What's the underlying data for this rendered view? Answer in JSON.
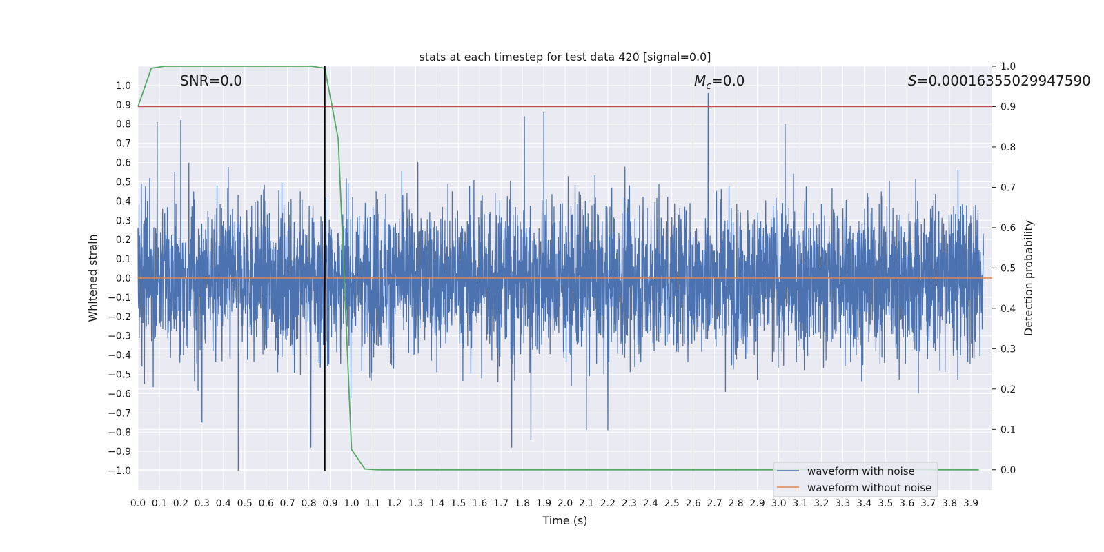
{
  "chart_data": {
    "type": "line",
    "title": "stats at each timestep for test data 420 [signal=0.0]",
    "xlabel": "Time (s)",
    "ylabel": "Whitened strain",
    "y2label": "Detection probability",
    "xlim": [
      0.0,
      4.0
    ],
    "ylim": [
      -1.1,
      1.1
    ],
    "y2lim": [
      -0.05,
      1.0
    ],
    "grid": true,
    "xticks": [
      "0.0",
      "0.1",
      "0.2",
      "0.3",
      "0.4",
      "0.5",
      "0.6",
      "0.7",
      "0.8",
      "0.9",
      "1.0",
      "1.1",
      "1.2",
      "1.3",
      "1.4",
      "1.5",
      "1.6",
      "1.7",
      "1.8",
      "1.9",
      "2.0",
      "2.1",
      "2.2",
      "2.3",
      "2.4",
      "2.5",
      "2.6",
      "2.7",
      "2.8",
      "2.9",
      "3.0",
      "3.1",
      "3.2",
      "3.3",
      "3.4",
      "3.5",
      "3.6",
      "3.7",
      "3.8",
      "3.9"
    ],
    "yticks": [
      "1.0",
      "0.9",
      "0.8",
      "0.7",
      "0.6",
      "0.5",
      "0.4",
      "0.3",
      "0.2",
      "0.1",
      "0.0",
      "-0.1",
      "-0.2",
      "-0.3",
      "-0.4",
      "-0.5",
      "-0.6",
      "-0.7",
      "-0.8",
      "-0.9",
      "-1.0"
    ],
    "y2ticks": [
      "1.0",
      "0.9",
      "0.8",
      "0.7",
      "0.6",
      "0.5",
      "0.4",
      "0.3",
      "0.2",
      "0.1",
      "0.0"
    ],
    "annotations": {
      "snr": "SNR=0.0",
      "mc_symbol": "M",
      "mc_sub": "c",
      "mc_value": "=0.0",
      "s_symbol": "S",
      "s_value": "=0.00016355029947590"
    },
    "threshold": {
      "y2": 0.9,
      "color": "#c44e52"
    },
    "vline": {
      "x": 0.875,
      "color": "#000000"
    },
    "legend": {
      "placement": "lower-right",
      "entries": [
        {
          "label": "waveform with noise",
          "color": "#4c72b0"
        },
        {
          "label": "waveform without noise",
          "color": "#dd8452"
        }
      ]
    },
    "series": [
      {
        "name": "waveform with noise",
        "axis": "left",
        "color": "#4c72b0",
        "sample_rate_hz": 1024,
        "noise_model": "gaussian",
        "amplitude_sigma": 0.2,
        "peaks": [
          {
            "x": 0.09,
            "y": 0.81
          },
          {
            "x": 0.2,
            "y": 0.82
          },
          {
            "x": 0.47,
            "y": -1.0
          },
          {
            "x": 0.81,
            "y": -0.88
          },
          {
            "x": 1.75,
            "y": -0.88
          },
          {
            "x": 1.81,
            "y": 0.84
          },
          {
            "x": 1.9,
            "y": 0.86
          },
          {
            "x": 2.67,
            "y": 0.96
          },
          {
            "x": 3.03,
            "y": 0.8
          },
          {
            "x": 0.03,
            "y": -0.55
          },
          {
            "x": 0.3,
            "y": -0.75
          },
          {
            "x": 2.1,
            "y": -0.79
          },
          {
            "x": 2.2,
            "y": -0.79
          },
          {
            "x": 1.84,
            "y": -0.84
          }
        ]
      },
      {
        "name": "waveform without noise",
        "axis": "left",
        "color": "#dd8452",
        "x": [
          0.0,
          4.0
        ],
        "y": [
          0.0,
          0.0
        ]
      },
      {
        "name": "",
        "axis": "right",
        "color": "#55a868",
        "x": [
          0.0,
          0.0625,
          0.125,
          0.8125,
          0.875,
          0.9375,
          1.0,
          1.0625,
          1.125,
          1.75,
          2.5,
          3.25,
          3.9375
        ],
        "y": [
          0.9,
          0.995,
          1.0,
          1.0,
          0.995,
          0.82,
          0.05,
          0.002,
          0.0,
          0.0,
          0.0,
          0.0,
          0.0
        ]
      }
    ]
  }
}
